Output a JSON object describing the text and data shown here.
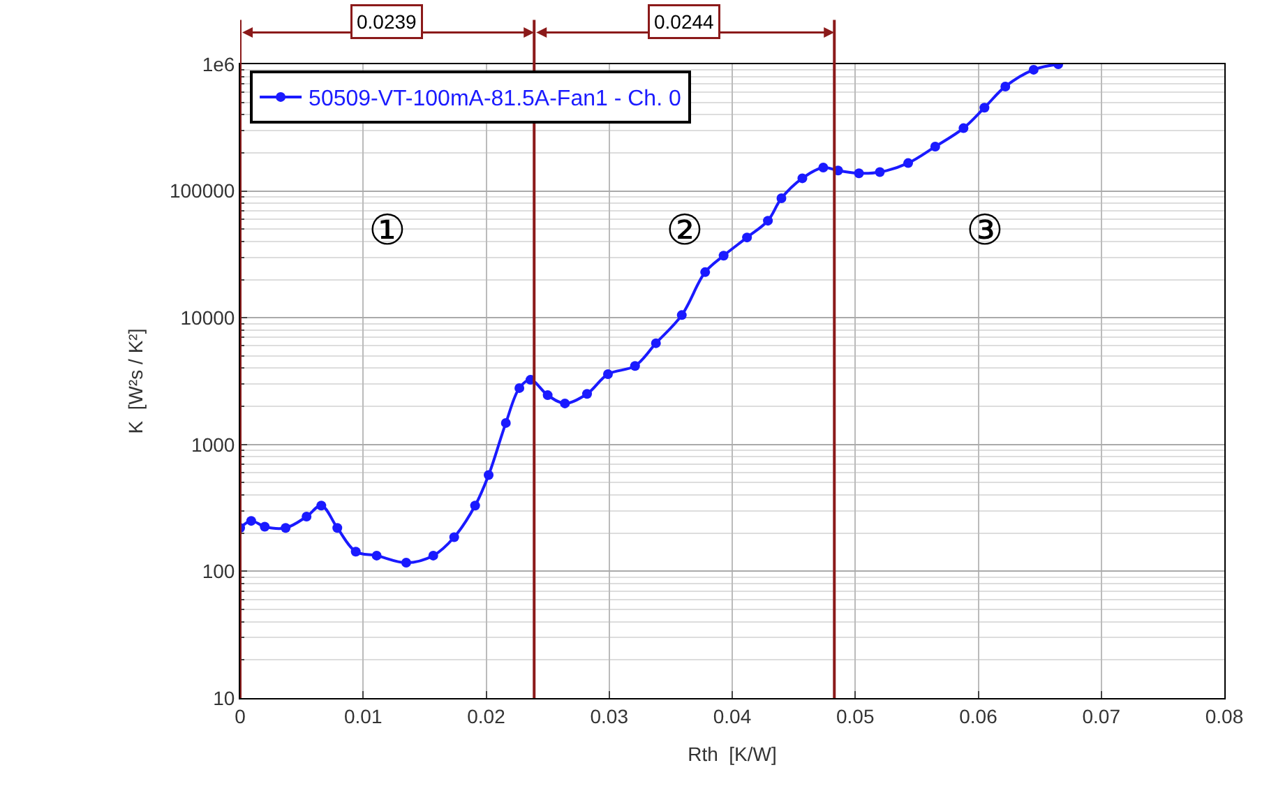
{
  "chart_data": {
    "type": "line",
    "xlabel": "Rth  [K/W]",
    "ylabel": "K  [W²s / K²]",
    "x": [
      0,
      0.0009,
      0.002,
      0.0037,
      0.0054,
      0.0066,
      0.0079,
      0.0094,
      0.0111,
      0.0135,
      0.0157,
      0.0174,
      0.0191,
      0.0202,
      0.0216,
      0.0227,
      0.0236,
      0.025,
      0.0264,
      0.0282,
      0.0299,
      0.0321,
      0.0338,
      0.0359,
      0.0378,
      0.0393,
      0.0412,
      0.0429,
      0.044,
      0.0457,
      0.0474,
      0.0486,
      0.0503,
      0.052,
      0.0543,
      0.0565,
      0.0588,
      0.0605,
      0.0622,
      0.0645,
      0.0665
    ],
    "series": [
      {
        "name": "50509-VT-100mA-81.5A-Fan1 - Ch. 0",
        "color": "#1a1aff",
        "values": [
          220,
          250,
          225,
          220,
          270,
          330,
          220,
          143,
          133,
          117,
          133,
          186,
          330,
          575,
          1480,
          2790,
          3240,
          2450,
          2110,
          2510,
          3590,
          4170,
          6300,
          10500,
          22900,
          30900,
          43000,
          58300,
          87600,
          126000,
          153000,
          145000,
          138000,
          141000,
          166000,
          224000,
          313000,
          454000,
          667000,
          905000,
          1000000
        ]
      }
    ],
    "xlim": [
      0,
      0.08
    ],
    "xticks": [
      0,
      0.01,
      0.02,
      0.03,
      0.04,
      0.05,
      0.06,
      0.07,
      0.08
    ],
    "ylim": [
      10,
      1000000
    ],
    "yticks": [
      10,
      100,
      1000,
      10000,
      100000,
      {
        "value": 1000000,
        "label": "1e6"
      }
    ],
    "log": "y",
    "grid": true,
    "legend": "top left",
    "marker": "circle",
    "line_style": "solid",
    "ref_lines": [
      {
        "axis": "x",
        "value": 0,
        "color": "#8b1a1a"
      },
      {
        "axis": "x",
        "value": 0.0239,
        "color": "#8b1a1a"
      },
      {
        "axis": "x",
        "value": 0.0483,
        "color": "#8b1a1a"
      }
    ],
    "annotations": [
      "0.0239",
      "0.0244",
      "①",
      "②",
      "③"
    ]
  }
}
